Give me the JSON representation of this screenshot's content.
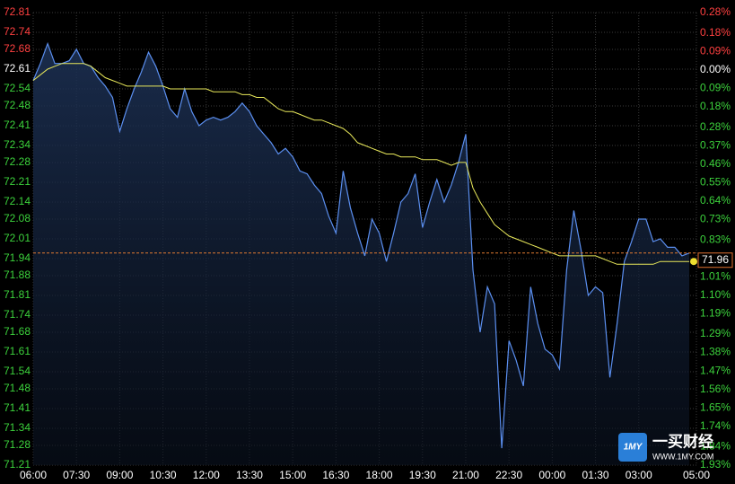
{
  "chart_data": {
    "type": "line",
    "x": [
      "06:00",
      "06:15",
      "06:30",
      "06:45",
      "07:00",
      "07:15",
      "07:30",
      "07:45",
      "08:00",
      "08:15",
      "08:30",
      "08:45",
      "09:00",
      "09:15",
      "09:30",
      "09:45",
      "10:00",
      "10:15",
      "10:30",
      "10:45",
      "11:00",
      "11:15",
      "11:30",
      "11:45",
      "12:00",
      "12:15",
      "12:30",
      "12:45",
      "13:00",
      "13:15",
      "13:30",
      "13:45",
      "14:00",
      "14:15",
      "14:30",
      "14:45",
      "15:00",
      "15:15",
      "15:30",
      "15:45",
      "16:00",
      "16:15",
      "16:30",
      "16:45",
      "17:00",
      "17:15",
      "17:30",
      "17:45",
      "18:00",
      "18:15",
      "18:30",
      "18:45",
      "19:00",
      "19:15",
      "19:30",
      "19:45",
      "20:00",
      "20:15",
      "20:30",
      "20:45",
      "21:00",
      "21:15",
      "21:30",
      "21:45",
      "22:00",
      "22:15",
      "22:30",
      "22:45",
      "23:00",
      "23:15",
      "23:30",
      "23:45",
      "00:00",
      "00:15",
      "00:30",
      "00:45",
      "01:00",
      "01:15",
      "01:30",
      "01:45",
      "02:00",
      "02:15",
      "02:30",
      "02:45",
      "03:00",
      "03:15",
      "03:30",
      "03:45",
      "04:00",
      "04:15",
      "04:30",
      "04:45"
    ],
    "series": [
      {
        "color": "#5b8ff0",
        "values": [
          72.57,
          72.63,
          72.7,
          72.63,
          72.63,
          72.64,
          72.68,
          72.63,
          72.62,
          72.58,
          72.55,
          72.51,
          72.39,
          72.47,
          72.54,
          72.6,
          72.67,
          72.62,
          72.55,
          72.47,
          72.44,
          72.54,
          72.46,
          72.41,
          72.43,
          72.44,
          72.43,
          72.44,
          72.46,
          72.49,
          72.46,
          72.41,
          72.38,
          72.35,
          72.31,
          72.33,
          72.3,
          72.25,
          72.24,
          72.2,
          72.17,
          72.09,
          72.03,
          72.25,
          72.12,
          72.03,
          71.95,
          72.08,
          72.03,
          71.93,
          72.03,
          72.14,
          72.17,
          72.24,
          72.05,
          72.14,
          72.22,
          72.14,
          72.2,
          72.28,
          72.38,
          71.9,
          71.68,
          71.84,
          71.78,
          71.27,
          71.65,
          71.58,
          71.49,
          71.84,
          71.71,
          71.62,
          71.6,
          71.55,
          71.9,
          72.11,
          71.97,
          71.81,
          71.84,
          71.82,
          71.52,
          71.71,
          71.93,
          72.0,
          72.08,
          72.08,
          72.0,
          72.01,
          71.98,
          71.98,
          71.95,
          71.96
        ]
      },
      {
        "color": "#e8e85a",
        "values": [
          72.57,
          72.59,
          72.61,
          72.62,
          72.63,
          72.63,
          72.63,
          72.63,
          72.62,
          72.6,
          72.58,
          72.57,
          72.56,
          72.55,
          72.55,
          72.55,
          72.55,
          72.55,
          72.55,
          72.54,
          72.54,
          72.54,
          72.54,
          72.54,
          72.54,
          72.53,
          72.53,
          72.53,
          72.53,
          72.52,
          72.52,
          72.51,
          72.51,
          72.49,
          72.47,
          72.46,
          72.46,
          72.45,
          72.44,
          72.43,
          72.43,
          72.42,
          72.41,
          72.4,
          72.38,
          72.35,
          72.34,
          72.33,
          72.32,
          72.31,
          72.31,
          72.3,
          72.3,
          72.3,
          72.29,
          72.29,
          72.29,
          72.28,
          72.27,
          72.28,
          72.28,
          72.19,
          72.14,
          72.1,
          72.06,
          72.04,
          72.02,
          72.01,
          72.0,
          71.99,
          71.98,
          71.97,
          71.96,
          71.95,
          71.95,
          71.95,
          71.95,
          71.95,
          71.95,
          71.94,
          71.93,
          71.92,
          71.92,
          71.92,
          71.92,
          71.92,
          71.92,
          71.93,
          71.93,
          71.93,
          71.93,
          71.93
        ]
      }
    ],
    "xlim": [
      "06:00",
      "05:00"
    ],
    "xticks": [
      "06:00",
      "07:30",
      "09:00",
      "10:30",
      "12:00",
      "13:30",
      "15:00",
      "16:30",
      "18:00",
      "19:30",
      "21:00",
      "22:30",
      "00:00",
      "01:30",
      "03:00",
      "05:00"
    ],
    "ylim": [
      71.21,
      72.81
    ],
    "yticks": [
      72.81,
      72.74,
      72.68,
      72.61,
      72.54,
      72.48,
      72.41,
      72.34,
      72.28,
      72.21,
      72.14,
      72.08,
      72.01,
      71.94,
      71.88,
      71.81,
      71.74,
      71.68,
      71.61,
      71.54,
      71.48,
      71.41,
      71.34,
      71.28,
      71.21
    ],
    "y2lim": [
      -1.93,
      0.28
    ],
    "y2ticks": [
      {
        "value": 0.28,
        "label": "0.28%"
      },
      {
        "value": 0.18,
        "label": "0.18%"
      },
      {
        "value": 0.09,
        "label": "0.09%"
      },
      {
        "value": 0,
        "label": "0.00%"
      },
      {
        "value": -0.09,
        "label": "0.09%"
      },
      {
        "value": -0.18,
        "label": "0.18%"
      },
      {
        "value": -0.28,
        "label": "0.28%"
      },
      {
        "value": -0.37,
        "label": "0.37%"
      },
      {
        "value": -0.46,
        "label": "0.46%"
      },
      {
        "value": -0.55,
        "label": "0.55%"
      },
      {
        "value": -0.64,
        "label": "0.64%"
      },
      {
        "value": -0.73,
        "label": "0.73%"
      },
      {
        "value": -0.83,
        "label": "0.83%"
      },
      {
        "value": -1.01,
        "label": "1.01%"
      },
      {
        "value": -1.1,
        "label": "1.10%"
      },
      {
        "value": -1.19,
        "label": "1.19%"
      },
      {
        "value": -1.29,
        "label": "1.29%"
      },
      {
        "value": -1.38,
        "label": "1.38%"
      },
      {
        "value": -1.47,
        "label": "1.47%"
      },
      {
        "value": -1.56,
        "label": "1.56%"
      },
      {
        "value": -1.65,
        "label": "1.65%"
      },
      {
        "value": -1.74,
        "label": "1.74%"
      },
      {
        "value": -1.84,
        "label": "1.84%"
      },
      {
        "value": -1.93,
        "label": "1.93%"
      }
    ],
    "grid": true
  },
  "watermark": {
    "logo": "1MY",
    "brand": "一买财经",
    "url": "WWW.1MY.COM"
  }
}
